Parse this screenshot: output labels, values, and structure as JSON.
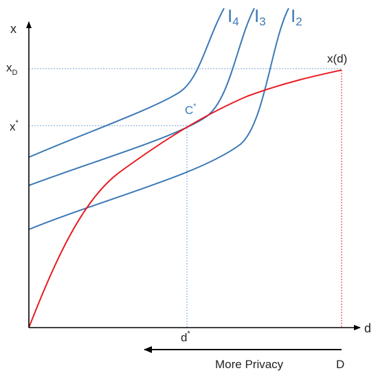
{
  "axes": {
    "x_axis_label": "d",
    "y_axis_label": "x"
  },
  "curves": {
    "red_curve_label": "x(d)",
    "indifference": [
      {
        "name": "I",
        "sub": "4"
      },
      {
        "name": "I",
        "sub": "3"
      },
      {
        "name": "I",
        "sub": "2"
      }
    ]
  },
  "points": {
    "tangency_label": "C",
    "tangency_sup": "*",
    "x_star_label": "x",
    "x_star_sup": "*",
    "x_d_label": "x",
    "x_d_sub": "D",
    "d_star_label": "d",
    "d_star_sup": "*",
    "d_max_label": "D"
  },
  "arrow": {
    "label": "More Privacy"
  },
  "colors": {
    "axis": "#000000",
    "red_curve": "#e8191f",
    "blue_curve": "#3a78b5",
    "guide_blue": "#6fa6d8",
    "guide_red": "#e8191f"
  }
}
